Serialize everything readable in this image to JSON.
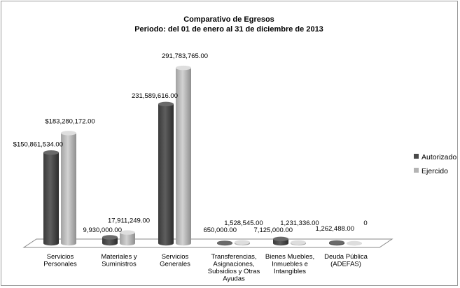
{
  "chart_data": {
    "type": "bar",
    "title": "Comparativo de Egresos",
    "subtitle": "Periodo: del 01 de enero al 31 de diciembre de 2013",
    "categories": [
      [
        "Servicios",
        "Personales"
      ],
      [
        "Materiales y",
        "Suministros"
      ],
      [
        "Servicios",
        "Generales"
      ],
      [
        "Transferencias,",
        "Asignaciones,",
        "Subsidios y Otras",
        "Ayudas"
      ],
      [
        "Bienes Muebles,",
        "Inmuebles e",
        "Intangibles"
      ],
      [
        "Deuda Pública",
        "(ADEFAS)"
      ]
    ],
    "series": [
      {
        "name": "Autorizado",
        "color": "#4a4a4a",
        "values": [
          150861534,
          9930000,
          231589616,
          650000,
          7125000,
          1262488
        ],
        "labels": [
          "$150,861,534.00",
          "9,930,000.00",
          "231,589,616.00",
          "650,000.00",
          "7,125,000.00",
          "1,262,488.00"
        ]
      },
      {
        "name": "Ejercido",
        "color": "#b4b4b4",
        "values": [
          183280172,
          17911249,
          291783765,
          1528545,
          1231336,
          0
        ],
        "labels": [
          "$183,280,172.00",
          "17,911,249.00",
          "291,783,765.00",
          "1,528,545.00",
          "1,231,336.00",
          "0"
        ]
      }
    ],
    "ylim": [
      0,
      300000000
    ],
    "grid": false,
    "legend": "right"
  }
}
